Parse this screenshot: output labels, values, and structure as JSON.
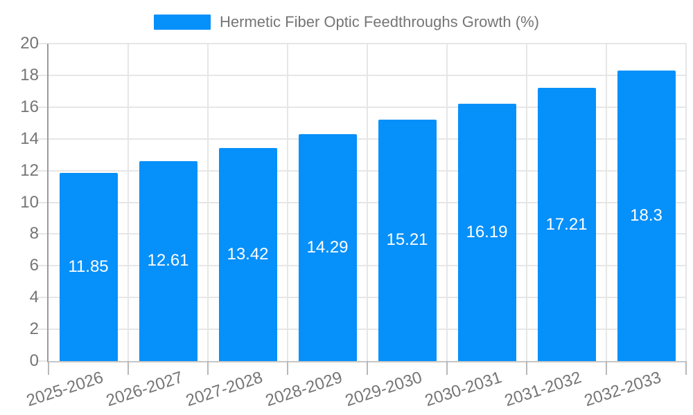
{
  "legend": {
    "position": "top-center"
  },
  "chart_data": {
    "type": "bar",
    "title": "Hermetic Fiber Optic Feedthroughs Growth (%)",
    "xlabel": "",
    "ylabel": "",
    "categories": [
      "2025-2026",
      "2026-2027",
      "2027-2028",
      "2028-2029",
      "2029-2030",
      "2030-2031",
      "2031-2032",
      "2032-2033"
    ],
    "series": [
      {
        "name": "Hermetic Fiber Optic Feedthroughs Growth (%)",
        "values": [
          11.85,
          12.61,
          13.42,
          14.29,
          15.21,
          16.19,
          17.21,
          18.3
        ]
      }
    ],
    "value_labels": [
      "11.85",
      "12.61",
      "13.42",
      "14.29",
      "15.21",
      "16.19",
      "17.21",
      "18.3"
    ],
    "ylim": [
      0,
      20
    ],
    "yticks": [
      0,
      2,
      4,
      6,
      8,
      10,
      12,
      14,
      16,
      18,
      20
    ],
    "grid": "horizontal and vertical category boundaries",
    "legend_position": "top-center",
    "x_label_rotation_deg": -18,
    "colors": {
      "bar": "#0690fa",
      "grid": "#e6e6e6",
      "axis_y": "#9b9b9b",
      "axis_x": "#c6c6c6",
      "tick": "#b8b8b8",
      "text": "#757575",
      "value_label": "#ffffff",
      "background": "#ffffff"
    }
  }
}
